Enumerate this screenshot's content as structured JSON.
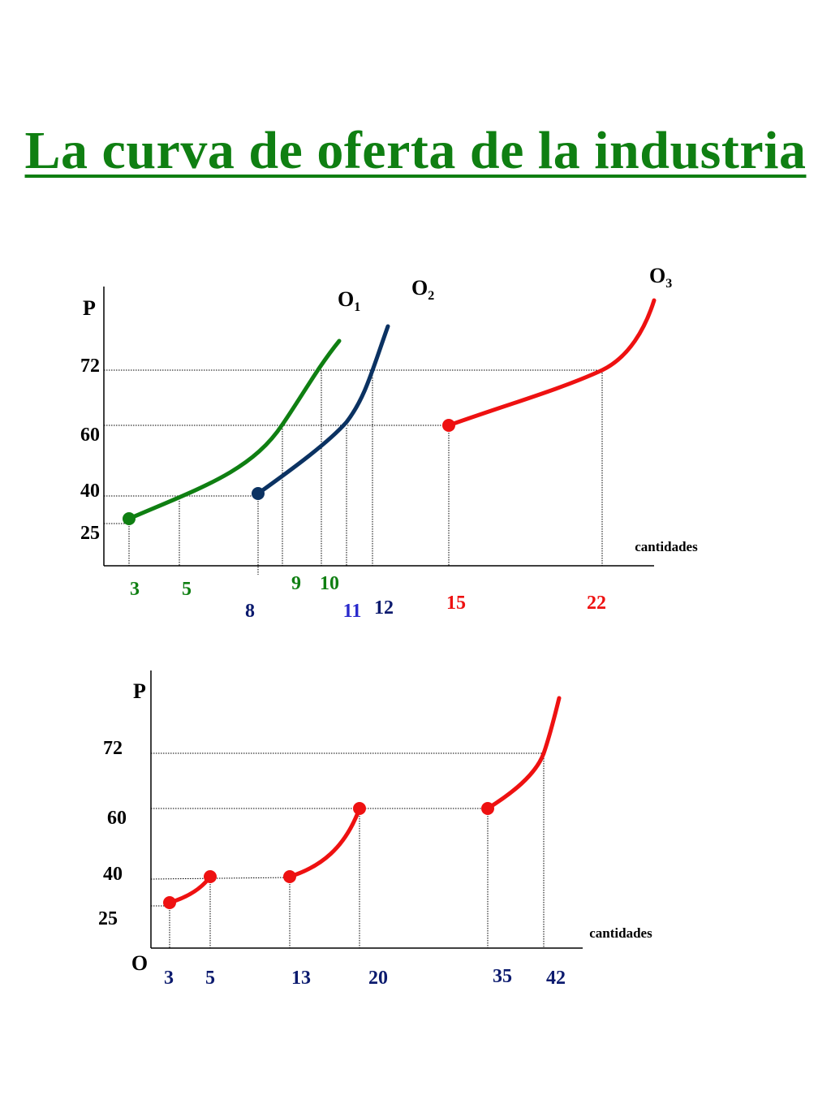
{
  "title": "La curva de oferta de la industria",
  "colors": {
    "title": "#0f7f12",
    "green": "#0f7f12",
    "navy": "#0b3262",
    "navy_label": "#0b1a6e",
    "blue_label": "#2a2acc",
    "red": "#ee1111",
    "axis": "#000000"
  },
  "chart_data": [
    {
      "type": "line",
      "title": "",
      "ylabel": "P",
      "xlabel": "cantidades",
      "y_ticks": [
        "72",
        "60",
        "40",
        "25"
      ],
      "guides": "dotted",
      "series": [
        {
          "name": "O1",
          "label_main": "O",
          "label_sub": "1",
          "color": "green",
          "start_dot": [
            3,
            25
          ],
          "points": [
            [
              3,
              25
            ],
            [
              5,
              40
            ],
            [
              9,
              60
            ],
            [
              10,
              72
            ]
          ],
          "x_labels": [
            {
              "text": "3",
              "x": 3
            },
            {
              "text": "5",
              "x": 5
            },
            {
              "text": "9",
              "x": 9
            },
            {
              "text": "10",
              "x": 10
            }
          ]
        },
        {
          "name": "O2",
          "label_main": "O",
          "label_sub": "2",
          "color": "navy",
          "start_dot": [
            8,
            40
          ],
          "points": [
            [
              8,
              40
            ],
            [
              11,
              60
            ],
            [
              12,
              72
            ]
          ],
          "x_labels": [
            {
              "text": "8",
              "x": 8
            },
            {
              "text": "11",
              "x": 11
            },
            {
              "text": "12",
              "x": 12
            }
          ]
        },
        {
          "name": "O3",
          "label_main": "O",
          "label_sub": "3",
          "color": "red",
          "start_dot": [
            15,
            60
          ],
          "points": [
            [
              15,
              60
            ],
            [
              22,
              72
            ]
          ],
          "x_labels": [
            {
              "text": "15",
              "x": 15
            },
            {
              "text": "22",
              "x": 22
            }
          ]
        }
      ]
    },
    {
      "type": "line",
      "title": "",
      "ylabel": "P",
      "xlabel": "cantidades",
      "origin_label": "O",
      "y_ticks": [
        "72",
        "60",
        "40",
        "25"
      ],
      "guides": "dotted",
      "series": [
        {
          "name": "",
          "color": "red",
          "segments": [
            [
              [
                3,
                25
              ],
              [
                5,
                40
              ]
            ],
            [
              [
                13,
                40
              ],
              [
                20,
                60
              ]
            ],
            [
              [
                35,
                60
              ],
              [
                42,
                72
              ]
            ]
          ],
          "dots": [
            [
              3,
              25
            ],
            [
              5,
              40
            ],
            [
              13,
              40
            ],
            [
              20,
              60
            ],
            [
              35,
              60
            ]
          ]
        }
      ],
      "x_labels": [
        "3",
        "5",
        "13",
        "20",
        "35",
        "42"
      ]
    }
  ]
}
